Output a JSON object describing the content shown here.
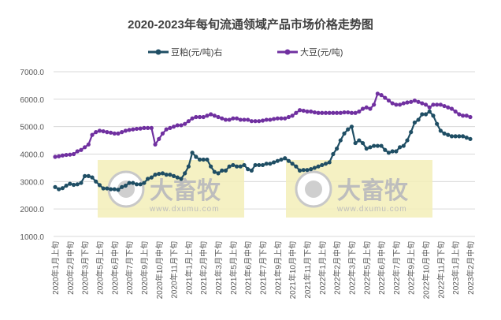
{
  "chart_data": {
    "type": "line",
    "title": "2020-2023年每旬流通领域产品市场价格走势图",
    "ylim": [
      1000,
      7000
    ],
    "y_ticks": [
      "1000.0",
      "2000.0",
      "3000.0",
      "4000.0",
      "5000.0",
      "6000.0",
      "7000.0"
    ],
    "grid": true,
    "legend_position": "top",
    "x_tick_labels": [
      "2020年1月上旬",
      "2020年2月中旬",
      "2020年3月下旬",
      "2020年5月上旬",
      "2020年6月中旬",
      "2020年7月下旬",
      "2020年9月上旬",
      "2020年10月中旬",
      "2020年11月下旬",
      "2021年1月上旬",
      "2021年2月中旬",
      "2021年3月下旬",
      "2021年5月上旬",
      "2021年6月中旬",
      "2021年7月下旬",
      "2021年9月上旬",
      "2021年10月中旬",
      "2021年11月下旬",
      "2022年1月上旬",
      "2022年2月中旬",
      "2022年3月下旬",
      "2022年5月上旬",
      "2022年6月中旬",
      "2022年7月下旬",
      "2022年9月上旬",
      "2022年10月中旬",
      "2022年11月下旬",
      "2023年1月上旬",
      "2023年2月中旬"
    ],
    "series": [
      {
        "name": "豆粕(元/吨)右",
        "color": "#1f4e64",
        "values": [
          2800,
          2720,
          2760,
          2850,
          2920,
          2880,
          2900,
          2950,
          3200,
          3200,
          3150,
          3000,
          2870,
          2750,
          2750,
          2720,
          2720,
          2700,
          2800,
          2850,
          2950,
          2950,
          2900,
          2900,
          2950,
          3100,
          3150,
          3250,
          3280,
          3300,
          3250,
          3250,
          3200,
          3150,
          3100,
          3300,
          3550,
          4050,
          3900,
          3800,
          3800,
          3800,
          3550,
          3350,
          3300,
          3400,
          3400,
          3550,
          3600,
          3550,
          3550,
          3600,
          3450,
          3400,
          3600,
          3600,
          3600,
          3650,
          3650,
          3700,
          3750,
          3800,
          3850,
          3750,
          3650,
          3550,
          3400,
          3420,
          3420,
          3450,
          3500,
          3550,
          3600,
          3650,
          3700,
          4000,
          4200,
          4500,
          4750,
          4900,
          5000,
          4400,
          4500,
          4400,
          4200,
          4250,
          4300,
          4300,
          4300,
          4150,
          4050,
          4100,
          4100,
          4250,
          4300,
          4500,
          4800,
          5150,
          5250,
          5450,
          5450,
          5550,
          5400,
          5100,
          4850,
          4750,
          4700,
          4650,
          4650,
          4650,
          4650,
          4600,
          4550
        ]
      },
      {
        "name": "大豆(元/吨)",
        "color": "#7030a0",
        "values": [
          3900,
          3920,
          3950,
          3970,
          3980,
          4000,
          4100,
          4150,
          4250,
          4350,
          4700,
          4800,
          4850,
          4830,
          4800,
          4780,
          4750,
          4750,
          4800,
          4850,
          4880,
          4900,
          4920,
          4930,
          4950,
          4950,
          4950,
          4350,
          4550,
          4750,
          4900,
          4950,
          5000,
          5050,
          5050,
          5100,
          5200,
          5300,
          5350,
          5350,
          5350,
          5400,
          5450,
          5400,
          5350,
          5300,
          5250,
          5250,
          5300,
          5300,
          5250,
          5250,
          5250,
          5200,
          5200,
          5200,
          5220,
          5250,
          5250,
          5280,
          5300,
          5300,
          5300,
          5350,
          5400,
          5500,
          5600,
          5580,
          5550,
          5550,
          5520,
          5500,
          5500,
          5500,
          5500,
          5500,
          5500,
          5500,
          5520,
          5520,
          5500,
          5500,
          5550,
          5650,
          5700,
          5650,
          5800,
          6200,
          6150,
          6050,
          5950,
          5850,
          5800,
          5800,
          5850,
          5880,
          5900,
          5950,
          5900,
          5850,
          5800,
          5700,
          5800,
          5800,
          5800,
          5750,
          5700,
          5650,
          5550,
          5450,
          5400,
          5400,
          5350
        ]
      }
    ]
  },
  "watermark": {
    "brand": "大畜牧",
    "url": "www.dxumu.com"
  }
}
